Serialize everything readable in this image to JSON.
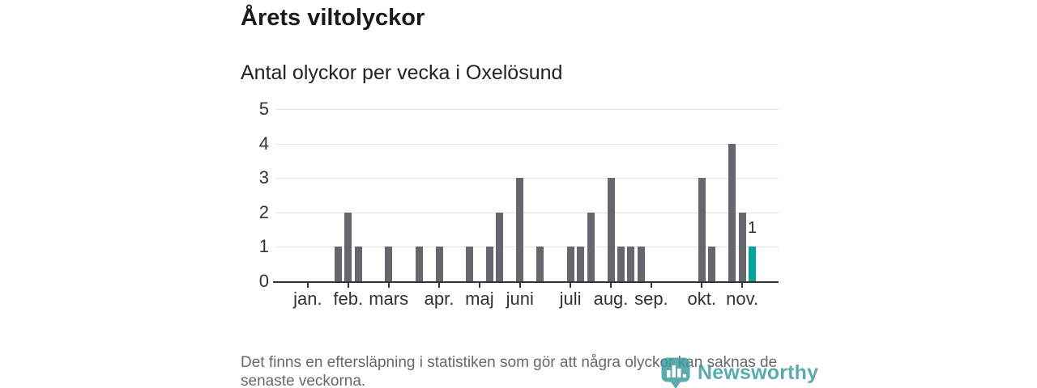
{
  "header": {
    "title": "Årets viltolyckor",
    "subtitle": "Antal olyckor per vecka i Oxelösund"
  },
  "chart_data": {
    "type": "bar",
    "title": "Årets viltolyckor",
    "subtitle": "Antal olyckor per vecka i Oxelösund",
    "x_unit": "vecka",
    "first_week": 1,
    "values": [
      0,
      0,
      0,
      1,
      2,
      1,
      0,
      0,
      1,
      0,
      0,
      1,
      0,
      1,
      0,
      0,
      1,
      0,
      1,
      2,
      0,
      3,
      0,
      1,
      0,
      0,
      1,
      1,
      2,
      0,
      3,
      1,
      1,
      1,
      0,
      0,
      0,
      0,
      0,
      3,
      1,
      0,
      4,
      2,
      1
    ],
    "highlight": {
      "week": 45,
      "value": 1,
      "label": "1"
    },
    "months": [
      {
        "label": "jan.",
        "week": 1
      },
      {
        "label": "feb.",
        "week": 5
      },
      {
        "label": "mars",
        "week": 9
      },
      {
        "label": "apr.",
        "week": 14
      },
      {
        "label": "maj",
        "week": 18
      },
      {
        "label": "juni",
        "week": 22
      },
      {
        "label": "juli",
        "week": 27
      },
      {
        "label": "aug.",
        "week": 31
      },
      {
        "label": "sep.",
        "week": 35
      },
      {
        "label": "okt.",
        "week": 40
      },
      {
        "label": "nov.",
        "week": 44
      }
    ],
    "ylim": [
      0,
      5
    ],
    "y_ticks": [
      0,
      1,
      2,
      3,
      4,
      5
    ],
    "xlim_weeks": [
      -2.2,
      47.6
    ],
    "grid": true,
    "legend": "none",
    "colors": {
      "bar": "#67666c",
      "highlight": "#00a49b",
      "gridline": "#e3e3e3",
      "axis": "#333333"
    }
  },
  "footer": {
    "line1": "Det finns en eftersläpning i statistiken som gör att några olyckor kan saknas de",
    "line2": "senaste veckorna."
  },
  "logo": {
    "text": "Newsworthy",
    "color": "#3d9b9b"
  }
}
